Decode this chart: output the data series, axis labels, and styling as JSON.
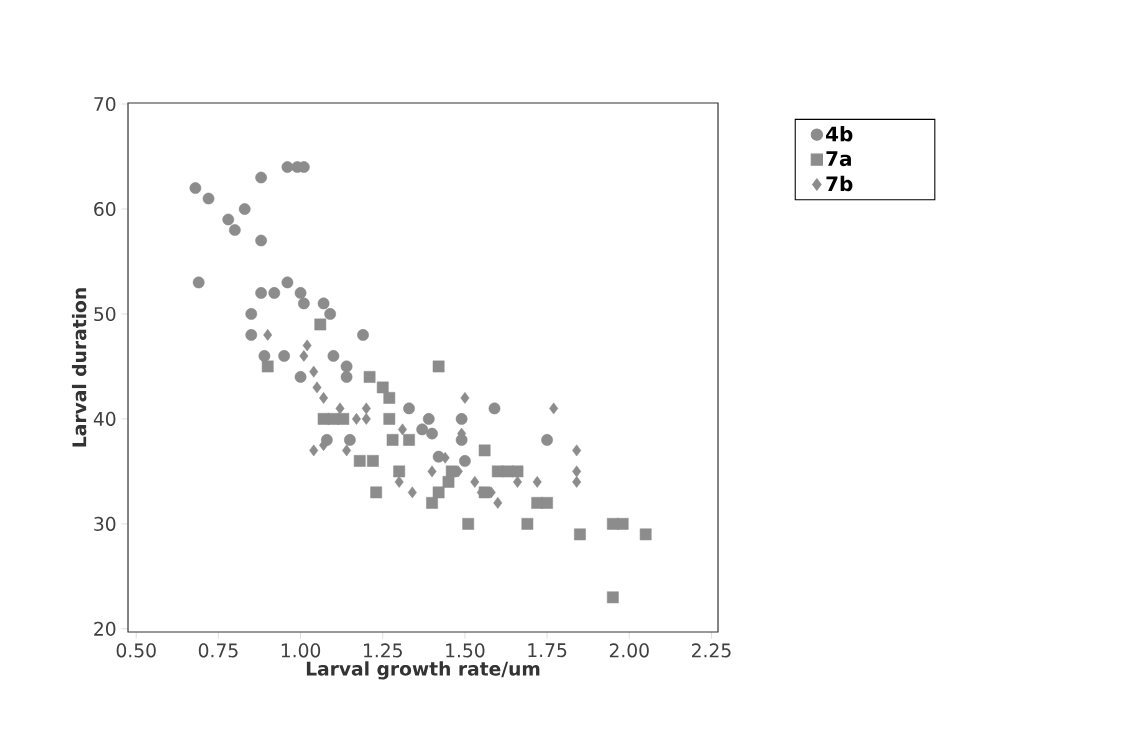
{
  "chart_data": {
    "type": "scatter",
    "xlabel": "Larval growth rate/um",
    "ylabel": "Larval duration",
    "xlim": [
      0.475,
      2.27
    ],
    "ylim": [
      19.7,
      70.1
    ],
    "xticks": [
      {
        "value": 0.5,
        "label": "0.50"
      },
      {
        "value": 0.75,
        "label": "0.75"
      },
      {
        "value": 1.0,
        "label": "1.00"
      },
      {
        "value": 1.25,
        "label": "1.25"
      },
      {
        "value": 1.5,
        "label": "1.50"
      },
      {
        "value": 1.75,
        "label": "1.75"
      },
      {
        "value": 2.0,
        "label": "2.00"
      },
      {
        "value": 2.25,
        "label": "2.25"
      }
    ],
    "yticks": [
      20,
      30,
      40,
      50,
      60,
      70
    ],
    "grid": false,
    "legend": "top right",
    "series": [
      {
        "name": "4b",
        "color": "#8c8c8c",
        "marker": "circle",
        "x": [
          0.68,
          0.72,
          0.69,
          0.78,
          0.8,
          0.83,
          0.88,
          0.88,
          0.96,
          0.99,
          1.01,
          0.85,
          0.85,
          0.88,
          0.92,
          0.96,
          0.89,
          1.0,
          1.01,
          0.95,
          1.0,
          1.07,
          1.09,
          1.19,
          1.1,
          1.14,
          1.14,
          1.08,
          1.15,
          1.33,
          1.39,
          1.49,
          1.59,
          1.49,
          1.75,
          1.37,
          1.4,
          1.42,
          1.5
        ],
        "values": [
          62,
          61,
          53,
          59,
          58,
          60,
          63,
          57,
          64,
          64,
          64,
          50,
          48,
          52,
          52,
          53,
          46,
          52,
          51,
          46,
          44,
          51,
          50,
          48,
          46,
          45,
          44,
          38,
          38,
          41,
          40,
          40,
          41,
          38,
          38,
          39,
          38.6,
          36.4,
          36
        ]
      },
      {
        "name": "7a",
        "color": "#8c8c8c",
        "marker": "square",
        "x": [
          1.06,
          1.07,
          1.1,
          1.13,
          0.9,
          1.42,
          1.18,
          1.22,
          1.23,
          1.27,
          1.28,
          1.25,
          1.27,
          1.21,
          1.3,
          1.33,
          1.4,
          1.46,
          1.51,
          1.56,
          1.56,
          1.6,
          1.63,
          1.66,
          1.69,
          1.72,
          1.75,
          1.85,
          1.95,
          1.98,
          1.95,
          2.05,
          1.42,
          1.45
        ],
        "values": [
          49,
          40,
          40,
          40,
          45,
          45,
          36,
          36,
          33,
          40,
          38,
          43,
          42,
          44,
          35,
          38,
          32,
          35,
          30,
          37,
          33,
          35,
          35,
          35,
          30,
          32,
          32,
          29,
          30,
          30,
          23,
          29,
          33,
          34
        ]
      },
      {
        "name": "7b",
        "color": "#8c8c8c",
        "marker": "diamond",
        "x": [
          0.9,
          1.01,
          1.02,
          1.04,
          1.05,
          1.07,
          1.04,
          1.07,
          1.12,
          1.14,
          1.17,
          1.2,
          1.2,
          1.3,
          1.34,
          1.31,
          1.5,
          1.49,
          1.58,
          1.55,
          1.6,
          1.66,
          1.72,
          1.77,
          1.84,
          1.84,
          1.84,
          1.4,
          1.44,
          1.48,
          1.53
        ],
        "values": [
          48,
          46,
          47,
          44.5,
          43,
          42,
          37,
          37.5,
          41,
          37,
          40,
          41,
          40,
          34,
          33,
          39,
          42,
          38.6,
          33,
          33,
          32,
          34,
          34,
          41,
          37,
          35,
          34,
          35,
          36.3,
          35,
          34
        ]
      }
    ]
  }
}
